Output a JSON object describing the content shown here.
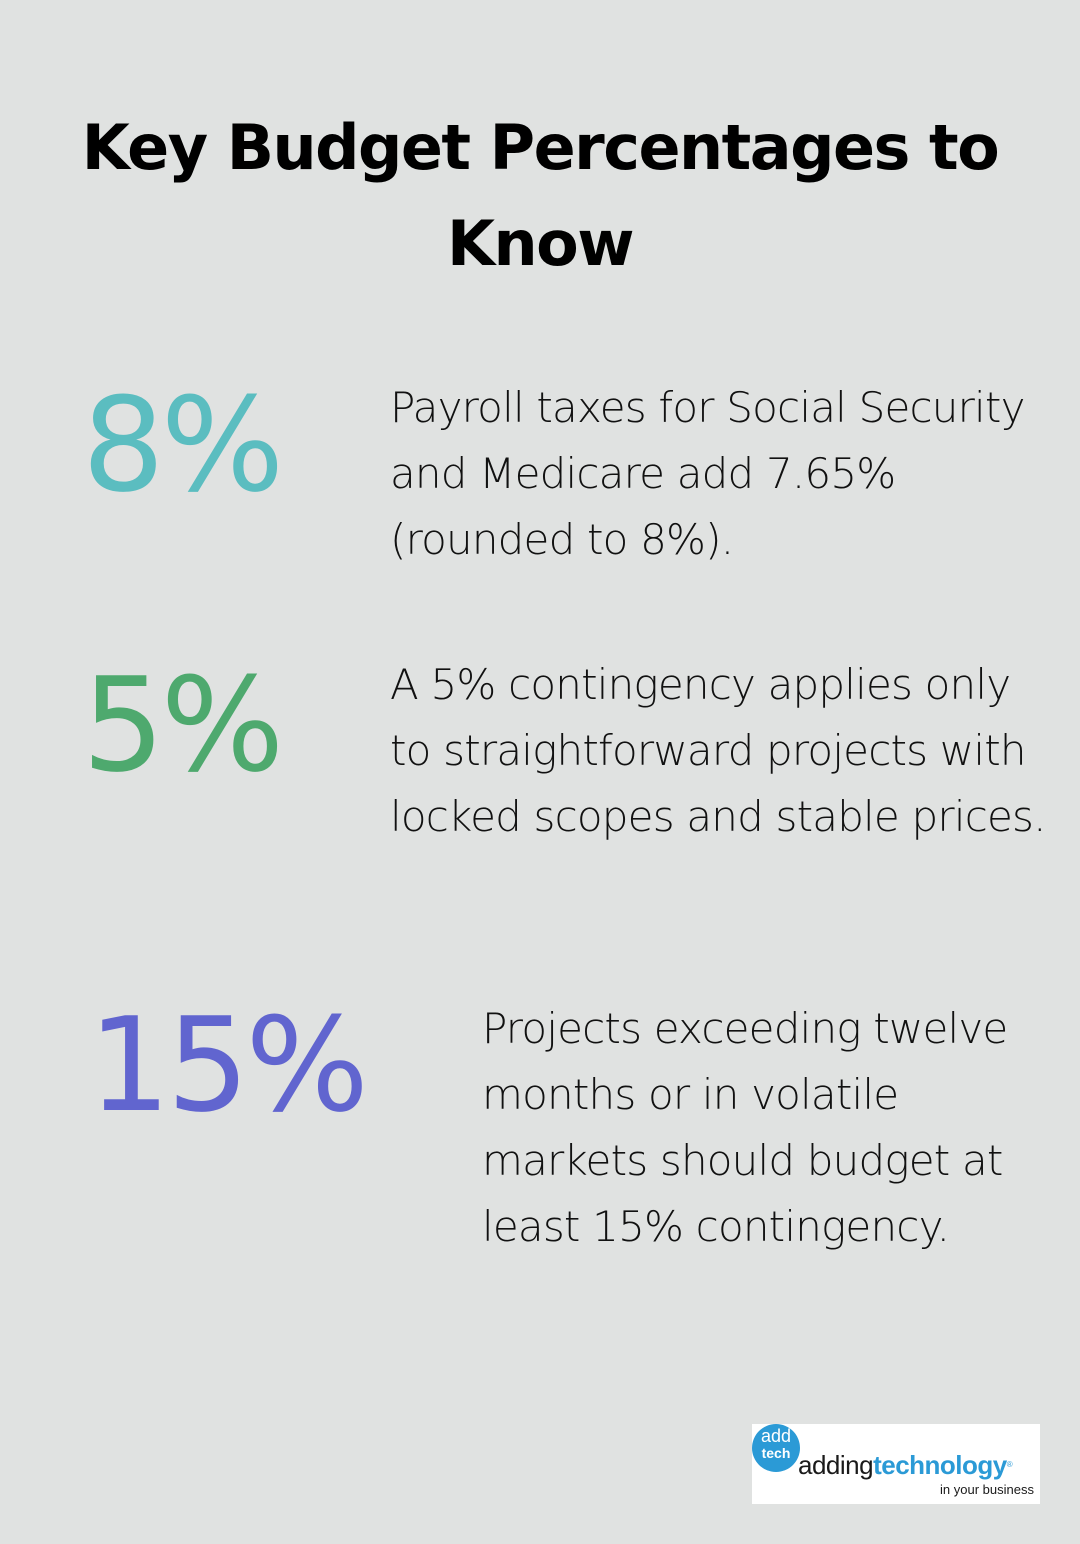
{
  "header": {
    "title_line1": "Key Budget Percentages to",
    "title_line2": "Know"
  },
  "stats": [
    {
      "value": "8%",
      "color": "#5bbdc0",
      "description": "Payroll taxes for Social Security and Medicare add 7.65% (rounded to 8%)."
    },
    {
      "value": "5%",
      "color": "#4ea96e",
      "description": "A 5% contingency applies only to straightforward projects with locked scopes and stable prices."
    },
    {
      "value": "15%",
      "color": "#6165cf",
      "description": "Projects exceeding twelve months or in volatile markets should budget at least 15% contingency."
    }
  ],
  "logo": {
    "circle_top": "add",
    "circle_bottom": "tech",
    "word_part1": "adding",
    "word_part2": "technology",
    "registered": "®",
    "tagline": "in your business",
    "brand_color": "#2b9ad6"
  }
}
